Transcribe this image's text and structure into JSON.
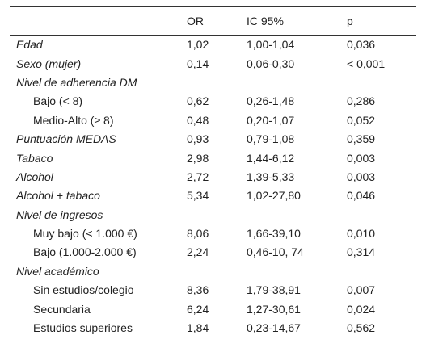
{
  "table": {
    "header": [
      "OR",
      "IC 95%",
      "p"
    ],
    "rows": [
      {
        "cells": [
          "Edad",
          "1,02",
          "1,00-1,04",
          "0,036"
        ]
      },
      {
        "cells": [
          "Sexo (mujer)",
          "0,14",
          "0,06-0,30",
          "< 0,001"
        ]
      },
      {
        "group": "Nivel de adherencia DM",
        "rows": [
          [
            "Bajo (< 8)",
            "0,62",
            "0,26-1,48",
            "0,286"
          ],
          [
            "Medio-Alto (≥ 8)",
            "0,48",
            "0,20-1,07",
            "0,052"
          ]
        ]
      },
      {
        "cells": [
          "Puntuación MEDAS",
          "0,93",
          "0,79-1,08",
          "0,359"
        ]
      },
      {
        "cells": [
          "Tabaco",
          "2,98",
          "1,44-6,12",
          "0,003"
        ]
      },
      {
        "cells": [
          "Alcohol",
          "2,72",
          "1,39-5,33",
          "0,003"
        ]
      },
      {
        "cells": [
          "Alcohol + tabaco",
          "5,34",
          "1,02-27,80",
          "0,046"
        ]
      },
      {
        "group": "Nivel de ingresos",
        "rows": [
          [
            "Muy bajo (< 1.000 €)",
            "8,06",
            "1,66-39,10",
            "0,010"
          ],
          [
            "Bajo (1.000-2.000 €)",
            "2,24",
            "0,46-10, 74",
            "0,314"
          ]
        ]
      },
      {
        "group": "Nivel académico",
        "rows": [
          [
            "Sin estudios/colegio",
            "8,36",
            "1,79-38,91",
            "0,007"
          ],
          [
            "Secundaria",
            "6,24",
            "1,27-30,61",
            "0,024"
          ],
          [
            "Estudios superiores",
            "1,84",
            "0,23-14,67",
            "0,562"
          ]
        ]
      }
    ]
  }
}
